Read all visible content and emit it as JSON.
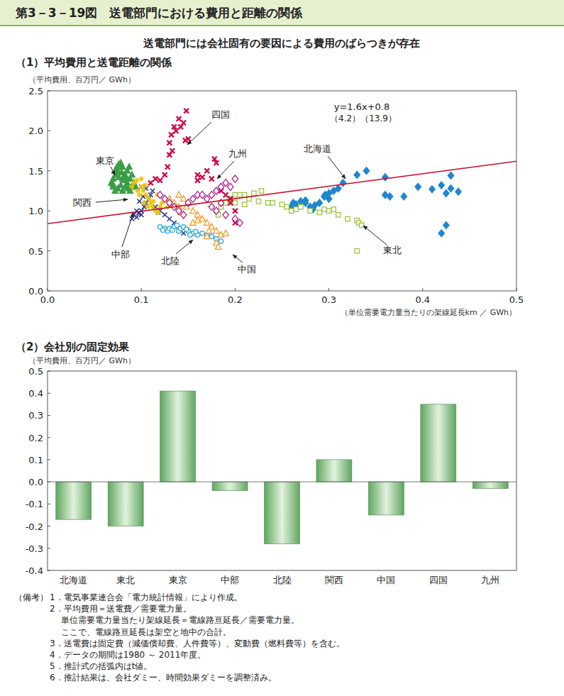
{
  "header": {
    "title": "第3－3－19図　送電部門における費用と距離の関係",
    "subtitle": "送電部門には会社固有の要因による費用のばらつきが存在"
  },
  "chart_data": [
    {
      "type": "scatter",
      "title": "（1）平均費用と送電距離の関係",
      "y_label": "（平均費用、百万円／ GWh）",
      "x_label": "（単位需要電力量当たりの架線延長km ／ GWh）",
      "annotations": [
        "y=1.6x+0.8",
        "（4.2）（13.9）"
      ],
      "xlim": [
        0,
        0.5
      ],
      "xticks": [
        {
          "value": 0,
          "label": "0.0"
        },
        0.1,
        0.2,
        0.3,
        0.4,
        0.5
      ],
      "ylim": [
        0,
        2.5
      ],
      "yticks": [
        {
          "value": 0,
          "label": "0.0"
        },
        0.5,
        {
          "value": 1,
          "label": "1.0"
        },
        1.5,
        {
          "value": 2,
          "label": "2.0"
        },
        2.5
      ],
      "grid": false,
      "series": [
        {
          "name": "北海道",
          "color": "#1f86cf",
          "marker": "diamond",
          "x": [
            0.26,
            0.262,
            0.265,
            0.27,
            0.275,
            0.28,
            0.285,
            0.29,
            0.295,
            0.3,
            0.305,
            0.31,
            0.315,
            0.33,
            0.34,
            0.36,
            0.36,
            0.365,
            0.38,
            0.395,
            0.41,
            0.42,
            0.425,
            0.43,
            0.43,
            0.438,
            0.42,
            0.425,
            0.275,
            0.283,
            0.296,
            0.3
          ],
          "values": [
            1.05,
            1.1,
            1.08,
            1.12,
            1.1,
            1.05,
            1.07,
            1.1,
            1.18,
            1.22,
            1.25,
            1.28,
            1.35,
            1.45,
            1.5,
            1.42,
            1.2,
            1.18,
            1.18,
            1.3,
            1.27,
            1.32,
            1.22,
            1.28,
            1.44,
            1.24,
            0.72,
            0.82,
            1.13,
            1.02,
            1.2,
            1.15
          ]
        },
        {
          "name": "東北",
          "color": "#9cc43c",
          "marker": "square_open",
          "x": [
            0.185,
            0.19,
            0.195,
            0.2,
            0.205,
            0.21,
            0.215,
            0.22,
            0.228,
            0.24,
            0.25,
            0.255,
            0.26,
            0.265,
            0.27,
            0.28,
            0.29,
            0.295,
            0.3,
            0.305,
            0.31,
            0.32,
            0.33,
            0.332,
            0.335,
            0.33,
            0.18,
            0.182,
            0.2,
            0.21,
            0.225,
            0.235
          ],
          "values": [
            1.05,
            1.1,
            1.15,
            1.2,
            1.2,
            1.2,
            1.15,
            1.22,
            1.25,
            1.1,
            1.08,
            1.05,
            1.0,
            1.02,
            1.05,
            1.0,
            0.98,
            1.02,
            1.0,
            1.02,
            0.95,
            0.9,
            0.88,
            0.85,
            0.82,
            0.5,
            1.0,
            0.95,
            1.1,
            1.08,
            1.12,
            1.1
          ]
        },
        {
          "name": "東京",
          "color": "#3a9e48",
          "marker": "triangle",
          "x": [
            0.068,
            0.07,
            0.07,
            0.072,
            0.073,
            0.074,
            0.075,
            0.076,
            0.078,
            0.08,
            0.08,
            0.082,
            0.083,
            0.085,
            0.085,
            0.087,
            0.088,
            0.09,
            0.09,
            0.092,
            0.075,
            0.078,
            0.08,
            0.082,
            0.086,
            0.088,
            0.07,
            0.072,
            0.076,
            0.079,
            0.084,
            0.094
          ],
          "values": [
            1.35,
            1.3,
            1.4,
            1.25,
            1.45,
            1.55,
            1.5,
            1.58,
            1.6,
            1.55,
            1.4,
            1.45,
            1.3,
            1.35,
            1.5,
            1.55,
            1.4,
            1.45,
            1.3,
            1.35,
            1.28,
            1.32,
            1.25,
            1.38,
            1.28,
            1.25,
            1.33,
            1.5,
            1.42,
            1.48,
            1.42,
            1.3
          ]
        },
        {
          "name": "中部",
          "color": "#25368a",
          "marker": "x",
          "x": [
            0.09,
            0.092,
            0.095,
            0.097,
            0.1,
            0.1,
            0.103,
            0.105,
            0.108,
            0.11,
            0.112,
            0.1,
            0.105,
            0.12,
            0.125,
            0.13,
            0.135,
            0.14,
            0.145,
            0.098,
            0.102,
            0.095,
            0.115,
            0.118
          ],
          "values": [
            0.9,
            0.95,
            1.0,
            0.97,
            1.0,
            0.95,
            1.05,
            1.1,
            1.15,
            1.2,
            1.25,
            1.3,
            1.28,
            1.0,
            0.95,
            0.9,
            0.85,
            0.75,
            0.72,
            1.12,
            1.18,
            0.92,
            1.05,
            0.98
          ]
        },
        {
          "name": "北陸",
          "color": "#27a6dc",
          "marker": "circle_open",
          "x": [
            0.12,
            0.125,
            0.128,
            0.13,
            0.135,
            0.14,
            0.142,
            0.145,
            0.15,
            0.155,
            0.16,
            0.165,
            0.17,
            0.175,
            0.18,
            0.185,
            0.133,
            0.138,
            0.148,
            0.158,
            0.123,
            0.152
          ],
          "values": [
            0.8,
            0.78,
            0.75,
            0.78,
            0.8,
            0.75,
            0.78,
            0.8,
            0.75,
            0.72,
            0.7,
            0.72,
            0.7,
            0.68,
            0.65,
            0.62,
            0.76,
            0.82,
            0.77,
            0.74,
            0.76,
            0.7
          ]
        },
        {
          "name": "関西",
          "color": "#f2c200",
          "marker": "asterisk",
          "x": [
            0.09,
            0.092,
            0.095,
            0.1,
            0.1,
            0.102,
            0.105,
            0.108,
            0.11,
            0.112,
            0.115,
            0.118,
            0.12,
            0.122,
            0.125,
            0.13,
            0.098,
            0.103,
            0.107,
            0.113,
            0.117,
            0.096,
            0.104,
            0.128
          ],
          "values": [
            1.3,
            1.35,
            1.38,
            1.4,
            1.3,
            1.25,
            1.2,
            1.15,
            1.1,
            1.05,
            1.0,
            0.98,
            1.05,
            1.1,
            1.15,
            1.1,
            1.2,
            1.1,
            1.05,
            1.12,
            1.2,
            1.25,
            1.32,
            1.05
          ]
        },
        {
          "name": "中国",
          "color": "#ef9e2c",
          "marker": "triangle_open",
          "x": [
            0.13,
            0.135,
            0.14,
            0.14,
            0.145,
            0.15,
            0.155,
            0.16,
            0.165,
            0.17,
            0.175,
            0.18,
            0.185,
            0.19,
            0.17,
            0.18,
            0.182,
            0.172,
            0.16,
            0.155,
            0.148,
            0.142
          ],
          "values": [
            1.15,
            1.1,
            1.05,
            1.2,
            1.15,
            1.1,
            1.0,
            0.95,
            0.9,
            0.85,
            0.8,
            0.75,
            0.7,
            0.72,
            0.68,
            0.6,
            0.55,
            0.75,
            0.88,
            0.85,
            1.05,
            0.98
          ]
        },
        {
          "name": "四国",
          "color": "#cc0f4a",
          "marker": "x_bold",
          "x": [
            0.11,
            0.115,
            0.12,
            0.125,
            0.128,
            0.13,
            0.13,
            0.132,
            0.135,
            0.137,
            0.14,
            0.142,
            0.145,
            0.148,
            0.15,
            0.147,
            0.16,
            0.17,
            0.175,
            0.178,
            0.18,
            0.19,
            0.195,
            0.2,
            0.2,
            0.195,
            0.185,
            0.133,
            0.16,
            0.165
          ],
          "values": [
            1.35,
            1.4,
            1.38,
            1.45,
            1.55,
            1.7,
            1.85,
            1.95,
            2.05,
            2.0,
            2.15,
            2.05,
            2.1,
            2.25,
            1.9,
            1.88,
            1.45,
            1.5,
            1.4,
            1.65,
            1.6,
            1.2,
            1.15,
            1.0,
            0.85,
            1.1,
            1.25,
            1.75,
            1.38,
            1.42
          ]
        },
        {
          "name": "九州",
          "color": "#ad1f88",
          "marker": "diamond_open",
          "x": [
            0.12,
            0.125,
            0.13,
            0.135,
            0.14,
            0.15,
            0.155,
            0.16,
            0.165,
            0.17,
            0.175,
            0.18,
            0.185,
            0.19,
            0.195,
            0.2,
            0.18,
            0.19,
            0.2,
            0.205,
            0.185,
            0.175,
            0.145
          ],
          "values": [
            1.2,
            1.15,
            1.1,
            1.05,
            1.0,
            1.1,
            1.15,
            1.2,
            1.2,
            1.15,
            1.2,
            1.25,
            1.3,
            1.35,
            1.3,
            1.4,
            1.0,
            0.95,
            0.9,
            0.85,
            1.1,
            1.05,
            0.95
          ]
        },
        {
          "type": "line",
          "color": "#c8102e",
          "line_style": "solid",
          "x": [
            0,
            0.5
          ],
          "values": [
            0.84,
            1.62
          ]
        }
      ]
    },
    {
      "type": "bar",
      "title": "（2）会社別の固定効果",
      "y_label": "（平均費用、百万円／ GWh）",
      "categories": [
        "北海道",
        "東北",
        "東京",
        "中部",
        "北陸",
        "関西",
        "中国",
        "四国",
        "九州"
      ],
      "values": [
        -0.17,
        -0.2,
        0.41,
        -0.04,
        -0.28,
        0.1,
        -0.15,
        0.35,
        -0.03
      ],
      "color": "#5fa660",
      "ylim": [
        -0.4,
        0.5
      ],
      "yticks": [
        -0.4,
        -0.3,
        -0.2,
        -0.1,
        {
          "value": 0,
          "label": "0.0"
        },
        0.1,
        0.2,
        0.3,
        0.4,
        0.5
      ],
      "grid": false
    }
  ],
  "notes": {
    "label": "（備考）",
    "items": [
      "1．電気事業連合会「電力統計情報」により作成。",
      "2．平均費用＝送電費／需要電力量。",
      "単位需要電力量当たり架線延長＝電線路亘延長／需要電力量。",
      "ここで、電線路亘延長は架空と地中の合計。",
      "3．送電費は固定費（減価償却費、人件費等）、変動費（燃料費等）を含む。",
      "4．データの期間は1980 ～ 2011年度。",
      "5．推計式の括弧内はt値。",
      "6．推計結果は、会社ダミー、時間効果ダミーを調整済み。"
    ]
  }
}
